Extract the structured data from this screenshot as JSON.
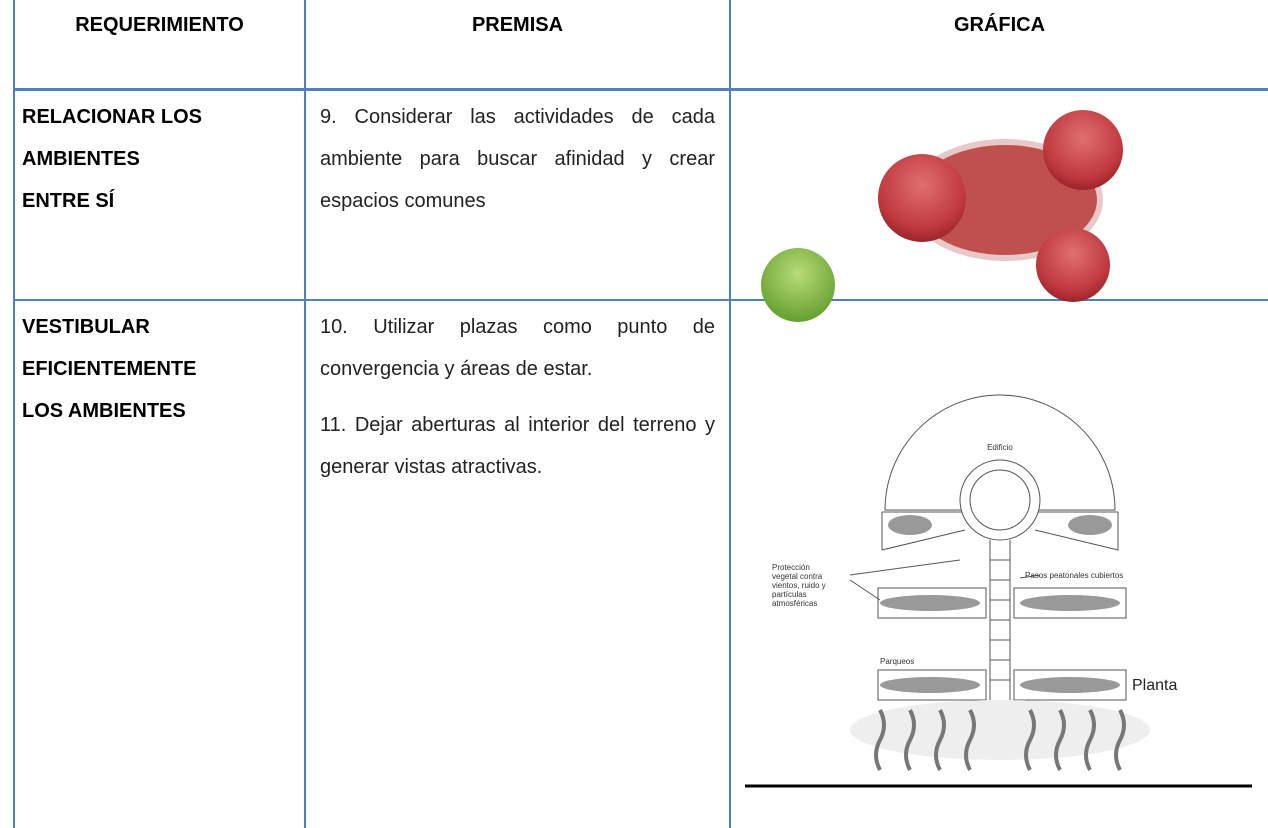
{
  "table": {
    "header": [
      "REQUERIMIENTO",
      "PREMISA",
      "GRÁFICA"
    ],
    "rows": [
      {
        "requirement": [
          "RELACIONAR LOS",
          "AMBIENTES",
          "ENTRE SÍ"
        ],
        "premises": [
          "9. Considerar las actividades de cada ambiente para buscar afinidad y crear espacios comunes"
        ]
      },
      {
        "requirement": [
          "VESTIBULAR",
          "EFICIENTEMENTE",
          "LOS  AMBIENTES"
        ],
        "premises": [
          "10. Utilizar plazas como punto de convergencia y áreas de estar.",
          "11. Dejar aberturas al interior del terreno y generar vistas atractivas."
        ],
        "figure": {
          "labels": {
            "building": "Edificio",
            "protection": [
              "Protección",
              "vegetal contra",
              "vientos, ruido y",
              "partículas",
              "atmosféricas"
            ],
            "walkways": "Pasos peatonales cubiertos",
            "parking": "Parqueos",
            "caption": "Planta"
          }
        }
      }
    ]
  }
}
